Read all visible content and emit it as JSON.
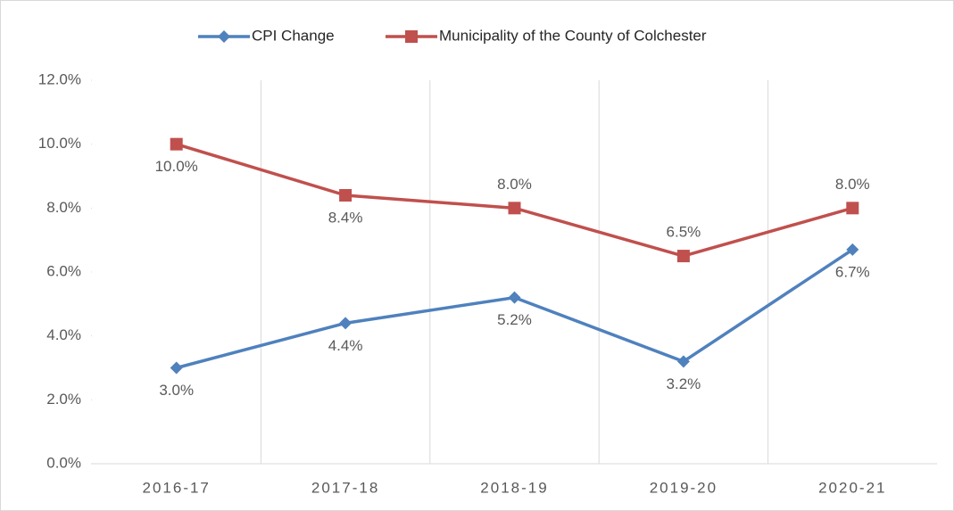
{
  "chart_data": {
    "type": "line",
    "categories": [
      "2016-17",
      "2017-18",
      "2018-19",
      "2019-20",
      "2020-21"
    ],
    "series": [
      {
        "name": "CPI Change",
        "color": "#4f81bd",
        "marker": "diamond",
        "values": [
          3.0,
          4.4,
          5.2,
          3.2,
          6.7
        ],
        "value_labels": [
          "3.0%",
          "4.4%",
          "5.2%",
          "3.2%",
          "6.7%"
        ]
      },
      {
        "name": "Municipality of the County of Colchester",
        "color": "#c0504d",
        "marker": "square",
        "values": [
          10.0,
          8.4,
          8.0,
          6.5,
          8.0
        ],
        "value_labels": [
          "10.0%",
          "8.4%",
          "8.0%",
          "6.5%",
          "8.0%"
        ]
      }
    ],
    "ylim": [
      0,
      12
    ],
    "yticks": [
      {
        "value": 0,
        "label": "0.0%"
      },
      {
        "value": 2,
        "label": "2.0%"
      },
      {
        "value": 4,
        "label": "4.0%"
      },
      {
        "value": 6,
        "label": "6.0%"
      },
      {
        "value": 8,
        "label": "8.0%"
      },
      {
        "value": 10,
        "label": "10.0%"
      },
      {
        "value": 12,
        "label": "12.0%"
      }
    ],
    "legend": "top"
  }
}
